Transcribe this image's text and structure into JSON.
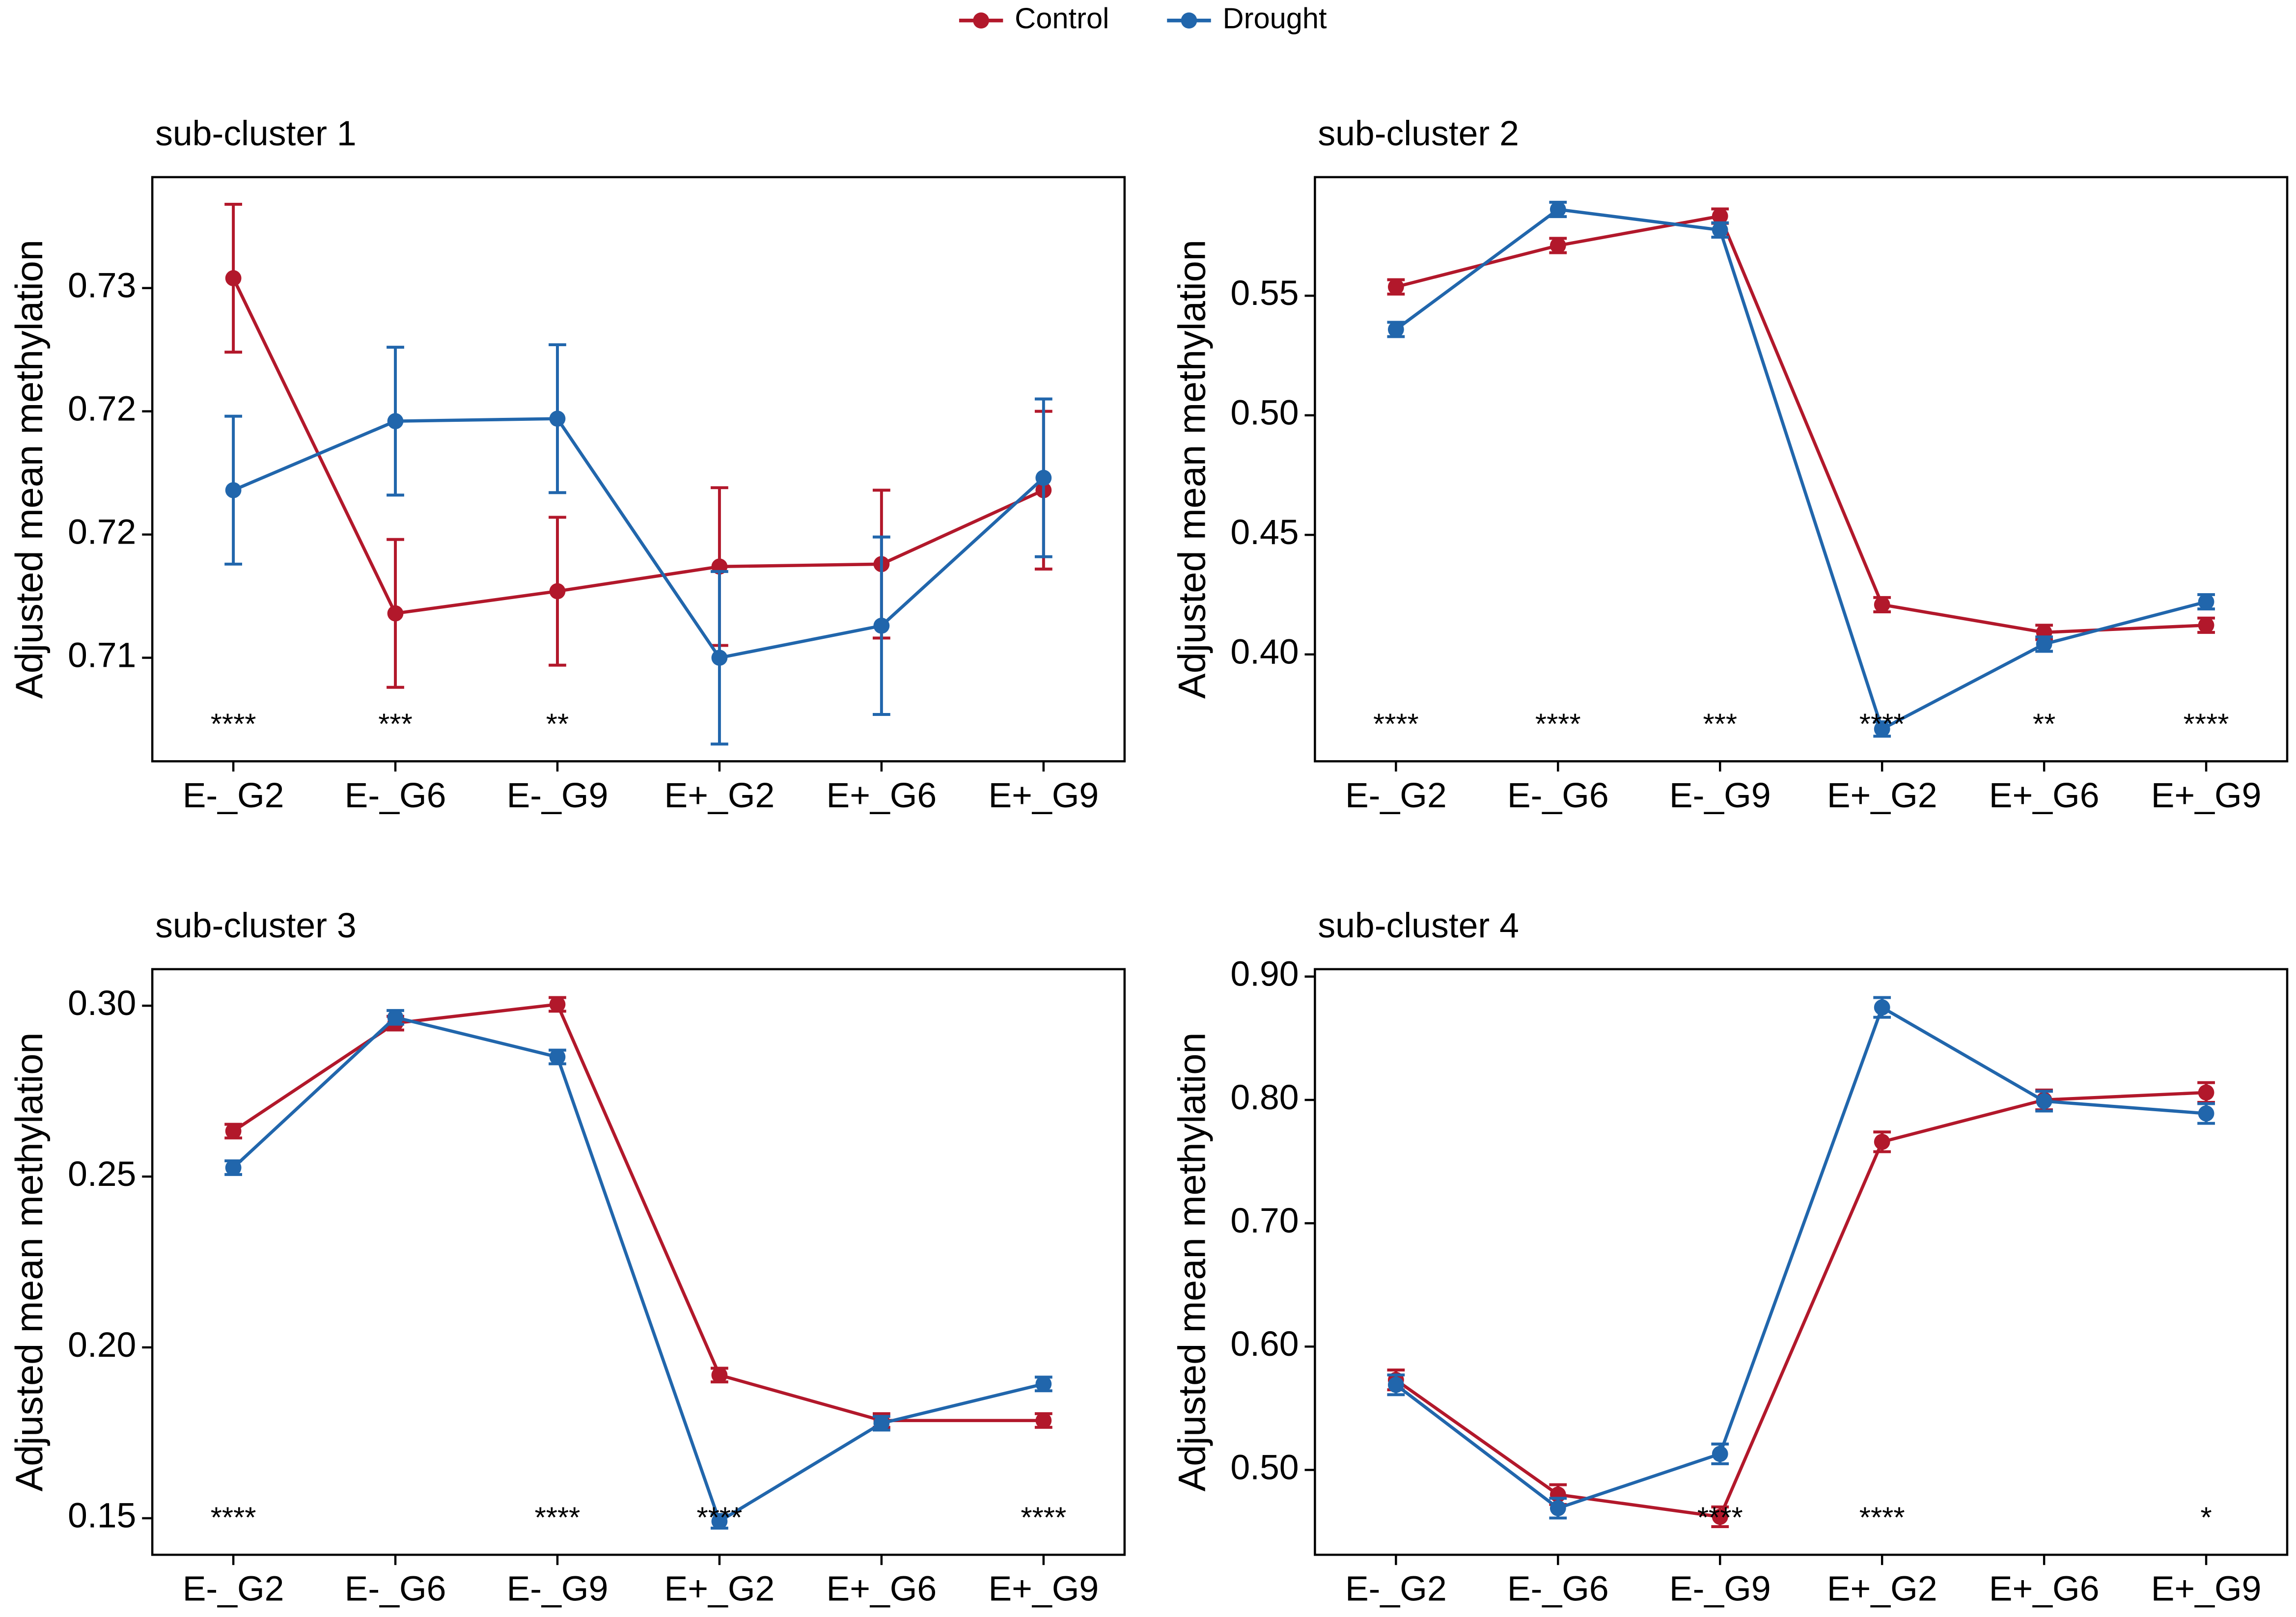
{
  "chart_data": [
    {
      "type": "line",
      "title": "sub-cluster 1",
      "y_label": "Adjusted mean methylation",
      "categories": [
        "E-_G2",
        "E-_G6",
        "E-_G9",
        "E+_G2",
        "E+_G6",
        "E+_G9"
      ],
      "series": [
        {
          "name": "Control",
          "color": "#b2182b",
          "values": [
            0.7304,
            0.7168,
            0.7177,
            0.7187,
            0.7188,
            0.7218
          ],
          "errors": [
            0.003,
            0.003,
            0.003,
            0.0032,
            0.003,
            0.0032
          ]
        },
        {
          "name": "Drought",
          "color": "#2166ac",
          "values": [
            0.7218,
            0.7246,
            0.7247,
            0.715,
            0.7163,
            0.7223
          ],
          "errors": [
            0.003,
            0.003,
            0.003,
            0.0035,
            0.0036,
            0.0032
          ]
        }
      ],
      "annotations": [
        "****",
        "***",
        "**",
        null,
        null,
        null
      ],
      "ylim": [
        0.7108,
        0.7345
      ],
      "yticks": [
        {
          "value": 0.715,
          "label": "0.71"
        },
        {
          "value": 0.72,
          "label": "0.72"
        },
        {
          "value": 0.725,
          "label": "0.72"
        },
        {
          "value": 0.73,
          "label": "0.73"
        }
      ]
    },
    {
      "type": "line",
      "title": "sub-cluster 2",
      "y_label": "Adjusted mean methylation",
      "categories": [
        "E-_G2",
        "E-_G6",
        "E-_G9",
        "E+_G2",
        "E+_G6",
        "E+_G9"
      ],
      "series": [
        {
          "name": "Control",
          "color": "#b2182b",
          "values": [
            0.5537,
            0.571,
            0.5833,
            0.4208,
            0.4092,
            0.4122
          ],
          "errors": [
            0.003,
            0.003,
            0.003,
            0.003,
            0.003,
            0.003
          ]
        },
        {
          "name": "Drought",
          "color": "#2166ac",
          "values": [
            0.5359,
            0.5861,
            0.5775,
            0.3688,
            0.4043,
            0.422
          ],
          "errors": [
            0.003,
            0.003,
            0.003,
            0.003,
            0.003,
            0.003
          ]
        }
      ],
      "annotations": [
        "****",
        "****",
        "***",
        "****",
        "**",
        "****"
      ],
      "ylim": [
        0.3553,
        0.5996
      ],
      "yticks": [
        {
          "value": 0.4,
          "label": "0.40"
        },
        0.45,
        {
          "value": 0.5,
          "label": "0.50"
        },
        0.55
      ]
    },
    {
      "type": "line",
      "title": "sub-cluster 3",
      "y_label": "Adjusted mean methylation",
      "categories": [
        "E-_G2",
        "E-_G6",
        "E-_G9",
        "E+_G2",
        "E+_G6",
        "E+_G9"
      ],
      "series": [
        {
          "name": "Control",
          "color": "#b2182b",
          "values": [
            0.2633,
            0.2949,
            0.3004,
            0.1919,
            0.1786,
            0.1786
          ],
          "errors": [
            0.002,
            0.002,
            0.002,
            0.002,
            0.002,
            0.002
          ]
        },
        {
          "name": "Drought",
          "color": "#2166ac",
          "values": [
            0.2526,
            0.2966,
            0.285,
            0.1491,
            0.1778,
            0.1893
          ],
          "errors": [
            0.002,
            0.002,
            0.002,
            0.002,
            0.002,
            0.002
          ]
        }
      ],
      "annotations": [
        "****",
        null,
        "****",
        "****",
        null,
        "****"
      ],
      "ylim": [
        0.1393,
        0.3107
      ],
      "yticks": [
        0.15,
        {
          "value": 0.2,
          "label": "0.20"
        },
        0.25,
        {
          "value": 0.3,
          "label": "0.30"
        }
      ]
    },
    {
      "type": "line",
      "title": "sub-cluster 4",
      "y_label": "Adjusted mean methylation",
      "categories": [
        "E-_G2",
        "E-_G6",
        "E-_G9",
        "E+_G2",
        "E+_G6",
        "E+_G9"
      ],
      "series": [
        {
          "name": "Control",
          "color": "#b2182b",
          "values": [
            0.573,
            0.48,
            0.462,
            0.766,
            0.8,
            0.806
          ],
          "errors": [
            0.008,
            0.008,
            0.008,
            0.008,
            0.008,
            0.008
          ]
        },
        {
          "name": "Drought",
          "color": "#2166ac",
          "values": [
            0.569,
            0.469,
            0.513,
            0.875,
            0.799,
            0.789
          ],
          "errors": [
            0.008,
            0.008,
            0.008,
            0.008,
            0.008,
            0.008
          ]
        }
      ],
      "annotations": [
        null,
        null,
        "****",
        "****",
        null,
        "*"
      ],
      "ylim": [
        0.4312,
        0.906
      ],
      "yticks": [
        {
          "value": 0.5,
          "label": "0.50"
        },
        {
          "value": 0.6,
          "label": "0.60"
        },
        {
          "value": 0.7,
          "label": "0.70"
        },
        {
          "value": 0.8,
          "label": "0.80"
        },
        {
          "value": 0.9,
          "label": "0.90"
        }
      ]
    }
  ]
}
